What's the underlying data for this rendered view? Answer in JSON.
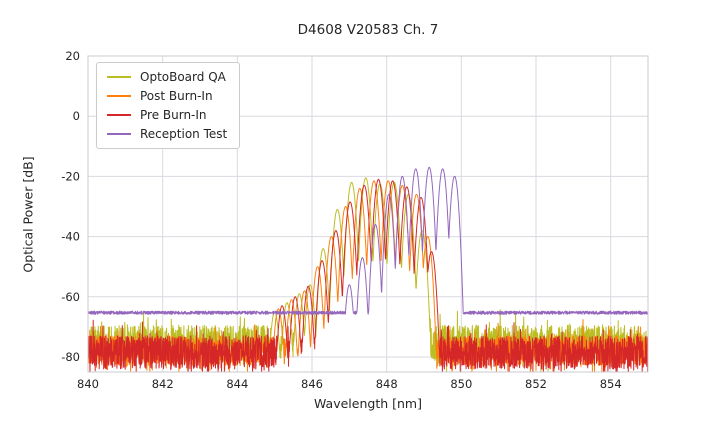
{
  "chart_data": {
    "type": "line",
    "title": "D4608 V20583 Ch. 7",
    "xlabel": "Wavelength [nm]",
    "ylabel": "Optical Power [dB]",
    "xlim": [
      840,
      855
    ],
    "ylim": [
      -85,
      20
    ],
    "x_ticks": [
      840,
      842,
      844,
      846,
      848,
      850,
      852,
      854
    ],
    "y_ticks": [
      20,
      0,
      -20,
      -40,
      -60,
      -80
    ],
    "grid": true,
    "grid_color": "#d9d9e0",
    "frame_color": "#cbcbd2",
    "legend_position": "upper left",
    "sample_step_nm": 0.006,
    "series": [
      {
        "name": "OptoBoard QA",
        "color": "#bcbd22",
        "noise_floor": -75.5,
        "noise_amp": 6.0,
        "noise_spike": 12,
        "seed": 101,
        "mode_halfwidth": 0.19,
        "dip_depth": 27,
        "peaks": [
          {
            "x": 845.0,
            "y": -65
          },
          {
            "x": 845.33,
            "y": -62
          },
          {
            "x": 845.66,
            "y": -59
          },
          {
            "x": 845.95,
            "y": -56
          },
          {
            "x": 846.3,
            "y": -44
          },
          {
            "x": 846.68,
            "y": -31
          },
          {
            "x": 847.06,
            "y": -22
          },
          {
            "x": 847.44,
            "y": -20.5
          },
          {
            "x": 847.82,
            "y": -22.5
          },
          {
            "x": 848.2,
            "y": -22
          },
          {
            "x": 848.58,
            "y": -26
          },
          {
            "x": 848.95,
            "y": -38
          }
        ]
      },
      {
        "name": "Post Burn-In",
        "color": "#ff7f0e",
        "noise_floor": -78,
        "noise_amp": 5.0,
        "noise_spike": 12,
        "seed": 202,
        "mode_halfwidth": 0.19,
        "dip_depth": 27,
        "peaks": [
          {
            "x": 845.1,
            "y": -64
          },
          {
            "x": 845.45,
            "y": -61
          },
          {
            "x": 845.8,
            "y": -58
          },
          {
            "x": 846.15,
            "y": -50
          },
          {
            "x": 846.52,
            "y": -40
          },
          {
            "x": 846.9,
            "y": -30
          },
          {
            "x": 847.28,
            "y": -24
          },
          {
            "x": 847.66,
            "y": -21.5
          },
          {
            "x": 848.04,
            "y": -21.5
          },
          {
            "x": 848.42,
            "y": -23
          },
          {
            "x": 848.8,
            "y": -26
          },
          {
            "x": 849.1,
            "y": -40
          }
        ]
      },
      {
        "name": "Pre Burn-In",
        "color": "#d62728",
        "noise_floor": -78.5,
        "noise_amp": 5.5,
        "noise_spike": 14,
        "seed": 303,
        "mode_halfwidth": 0.19,
        "dip_depth": 27,
        "peaks": [
          {
            "x": 845.2,
            "y": -63
          },
          {
            "x": 845.55,
            "y": -60
          },
          {
            "x": 845.9,
            "y": -56.5
          },
          {
            "x": 846.27,
            "y": -48
          },
          {
            "x": 846.64,
            "y": -38
          },
          {
            "x": 847.02,
            "y": -28.5
          },
          {
            "x": 847.4,
            "y": -23
          },
          {
            "x": 847.78,
            "y": -21
          },
          {
            "x": 848.16,
            "y": -21.5
          },
          {
            "x": 848.54,
            "y": -23.5
          },
          {
            "x": 848.92,
            "y": -27
          },
          {
            "x": 849.2,
            "y": -45
          }
        ]
      },
      {
        "name": "Reception Test",
        "color": "#9467bd",
        "noise_floor": -65.3,
        "noise_amp": 0.55,
        "noise_spike": 0,
        "seed": 404,
        "mode_halfwidth": 0.18,
        "dip_depth": 28,
        "peaks": [
          {
            "x": 847.0,
            "y": -56
          },
          {
            "x": 847.35,
            "y": -47
          },
          {
            "x": 847.7,
            "y": -36
          },
          {
            "x": 848.06,
            "y": -26
          },
          {
            "x": 848.42,
            "y": -20
          },
          {
            "x": 848.78,
            "y": -17.5
          },
          {
            "x": 849.14,
            "y": -17
          },
          {
            "x": 849.5,
            "y": -17.5
          },
          {
            "x": 849.82,
            "y": -20
          }
        ]
      }
    ]
  }
}
